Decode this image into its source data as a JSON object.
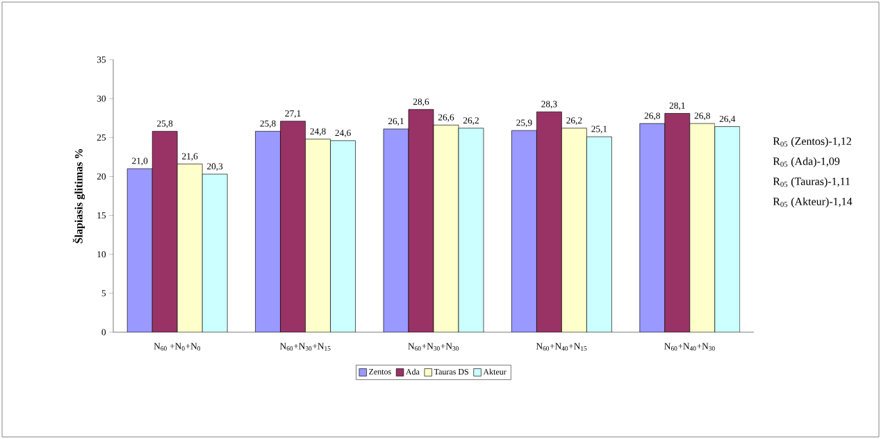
{
  "chart_data": {
    "type": "bar",
    "ylabel": "**Šlapiasis glitimas %**",
    "categories": [
      "N$_{60}$ +N$_{0}$+N$_{0}$",
      "N$_{60}$+N$_{30}$+N$_{15}$",
      "N$_{60}$+N$_{30}$+N$_{30}$",
      "N$_{60}$+N$_{40}$+N$_{15}$",
      "N$_{60}$+N$_{40}$+N$_{30}$"
    ],
    "series": [
      {
        "name": "Zentos",
        "color": "#9999ff",
        "values": [
          21.0,
          25.8,
          26.1,
          25.9,
          26.8
        ],
        "value_labels": [
          "21,0",
          "25,8",
          "26,1",
          "25,9",
          "26,8"
        ]
      },
      {
        "name": "Ada",
        "color": "#993366",
        "values": [
          25.8,
          27.1,
          28.6,
          28.3,
          28.1
        ],
        "value_labels": [
          "25,8",
          "27,1",
          "28,6",
          "28,3",
          "28,1"
        ]
      },
      {
        "name": "Tauras DS",
        "color": "#ffffcc",
        "values": [
          21.6,
          24.8,
          26.6,
          26.2,
          26.8
        ],
        "value_labels": [
          "21,6",
          "24,8",
          "26,6",
          "26,2",
          "26,8"
        ]
      },
      {
        "name": "Akteur",
        "color": "#ccffff",
        "values": [
          20.3,
          24.6,
          26.2,
          25.1,
          26.4
        ],
        "value_labels": [
          "20,3",
          "24,6",
          "26,2",
          "25,1",
          "26,4"
        ]
      }
    ],
    "ylim": [
      0,
      35
    ],
    "yticks": [
      0,
      5,
      10,
      15,
      20,
      25,
      30,
      35
    ],
    "legend": "bottom",
    "grid": false,
    "annotations": [
      "R$_{05}$ (Zentos)-1,12",
      "R$_{05}$ (Ada)-1,09",
      "R$_{05}$ (Tauras)-1,11",
      "R$_{05}$ (Akteur)-1,14"
    ]
  }
}
